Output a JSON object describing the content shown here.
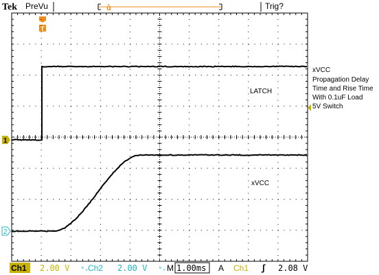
{
  "header": {
    "brand": "Tek",
    "mode": "PreVu",
    "trigger_state": "Trig?"
  },
  "markers": {
    "trigger_pos": "T",
    "ch1_ground": "1",
    "ch2_ground": "2"
  },
  "annotations": {
    "title_lines": [
      "xVCC",
      "Propagation Delay",
      "Time and Rise Time",
      "With 0.1uF Load",
      "5V Switch"
    ],
    "trace1_label": "LATCH",
    "trace2_label": "xVCC"
  },
  "status": {
    "ch1_name": "Ch1",
    "ch1_scale": "2.00 V",
    "ch2_name": "Ch2",
    "ch2_scale": "2.00 V",
    "timebase_prefix": "M",
    "timebase": "1.00ms",
    "trigger_mode": "A",
    "trigger_source": "Ch1",
    "trigger_level": "2.08 V"
  },
  "colors": {
    "ch1": "#c8b400",
    "ch2": "#1fb5c7",
    "trigger": "#f08c1e",
    "grid": "#000000"
  }
}
